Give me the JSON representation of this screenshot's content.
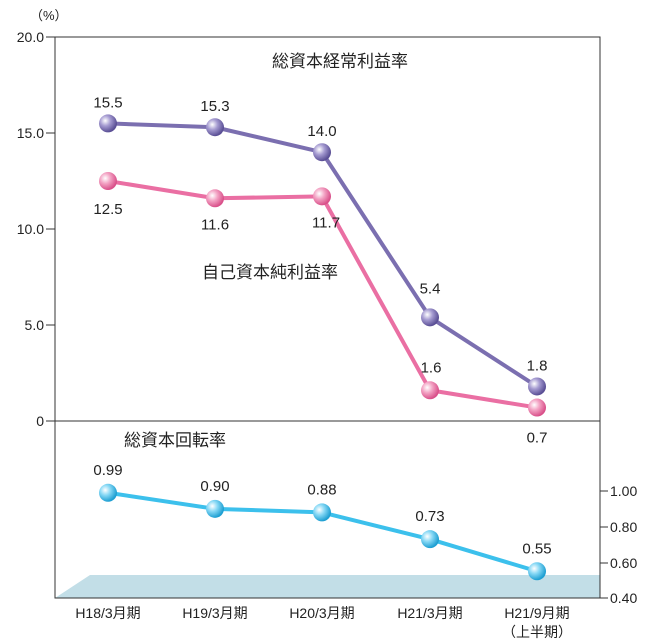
{
  "chart_data": {
    "type": "line",
    "categories": [
      "H18/3月期",
      "H19/3月期",
      "H20/3月期",
      "H21/3月期",
      "H21/9月期"
    ],
    "category_sublabels": [
      "",
      "",
      "",
      "",
      "（上半期）"
    ],
    "unit_label": "（%）",
    "upper_panel": {
      "yticks": [
        "20.0",
        "15.0",
        "10.0",
        "5.0",
        "0"
      ],
      "ylim": [
        0,
        20
      ],
      "series": [
        {
          "name": "総資本経常利益率",
          "color": "#7b6fb0",
          "values": [
            15.5,
            15.3,
            14.0,
            5.4,
            1.8
          ],
          "labels": [
            "15.5",
            "15.3",
            "14.0",
            "5.4",
            "1.8"
          ]
        },
        {
          "name": "自己資本純利益率",
          "color": "#ea6fa3",
          "values": [
            12.5,
            11.6,
            11.7,
            1.6,
            0.7
          ],
          "labels": [
            "12.5",
            "11.6",
            "11.7",
            "1.6",
            "0.7"
          ]
        }
      ]
    },
    "lower_panel": {
      "yticks": [
        "1.00",
        "0.80",
        "0.60",
        "0.40"
      ],
      "ylim": [
        0.4,
        1.0
      ],
      "series": [
        {
          "name": "総資本回転率",
          "color": "#3cc0ec",
          "values": [
            0.99,
            0.9,
            0.88,
            0.73,
            0.55
          ],
          "labels": [
            "0.99",
            "0.90",
            "0.88",
            "0.73",
            "0.55"
          ]
        }
      ]
    },
    "grid": false
  }
}
